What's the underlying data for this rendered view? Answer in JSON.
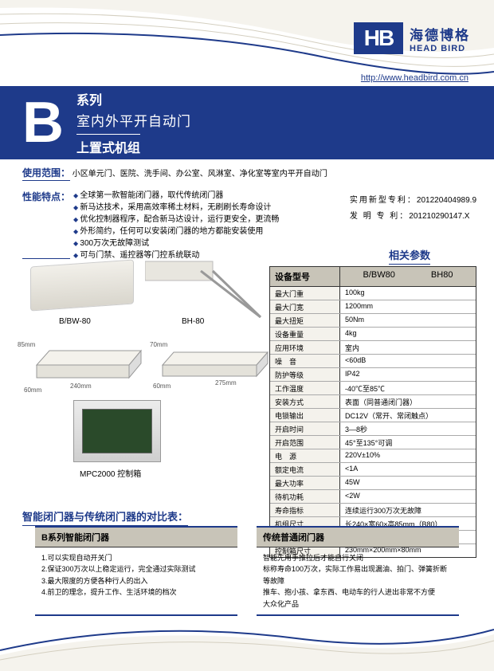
{
  "brand": {
    "cn": "海德博格",
    "en": "HEAD BIRD",
    "mark": "HB",
    "url": "http://www.headbird.com.cn"
  },
  "title": {
    "letter": "B",
    "line1": "系列",
    "line2": "室内外平开自动门",
    "line3": "上置式机组"
  },
  "scope_label": "使用范围：",
  "scope_text": "小区单元门、医院、洗手间、办公室、风淋室、净化室等室内平开自动门",
  "feat_label": "性能特点：",
  "features": [
    "全球第一款智能闭门器，取代传统闭门器",
    "新马达技术，采用高效率稀土材料，无刷刷长寿命设计",
    "优化控制器程序，配合新马达设计，运行更安全，更流畅",
    "外形简约，任何可以安装闭门器的地方都能安装使用",
    "300万次无故障测试",
    "可与门禁、遥控器等门控系统联动"
  ],
  "patents": [
    {
      "label": "实用新型专利：",
      "num": "201220404989.9"
    },
    {
      "label": "发 明 专 利：",
      "num": "201210290147.X"
    }
  ],
  "products": {
    "p1": "B/BW-80",
    "p2": "BH-80",
    "p3": "MPC2000 控制箱"
  },
  "dims": {
    "d85": "85mm",
    "d240": "240mm",
    "d60a": "60mm",
    "d70": "70mm",
    "d275": "275mm",
    "d60b": "60mm"
  },
  "params_title": "相关参数",
  "params_header": {
    "label": "设备型号",
    "m1": "B/BW80",
    "m2": "BH80"
  },
  "params": [
    {
      "k": "最大门重",
      "v": "100kg"
    },
    {
      "k": "最大门宽",
      "v": "1200mm"
    },
    {
      "k": "最大扭矩",
      "v": "50Nm"
    },
    {
      "k": "设备重量",
      "v": "4kg"
    },
    {
      "k": "应用环境",
      "v": "室内"
    },
    {
      "k": "噪　音",
      "v": "<60dB"
    },
    {
      "k": "防护等级",
      "v": "IP42"
    },
    {
      "k": "工作温度",
      "v": "-40℃至85℃"
    },
    {
      "k": "安装方式",
      "v": "表面（同普通闭门器）"
    },
    {
      "k": "电锁输出",
      "v": "DC12V（常开、常闭触点）"
    },
    {
      "k": "开启时间",
      "v": "3—8秒"
    },
    {
      "k": "开启范围",
      "v": "45°至135°可调"
    },
    {
      "k": "电　源",
      "v": "220V±10%"
    },
    {
      "k": "额定电流",
      "v": "<1A"
    },
    {
      "k": "最大功率",
      "v": "45W"
    },
    {
      "k": "待机功耗",
      "v": "<2W"
    },
    {
      "k": "寿命指标",
      "v": "连续运行300万次无故障"
    },
    {
      "k": "机组尺寸",
      "v": "长240×宽60×高85mm（B80）"
    },
    {
      "k": "",
      "v": "长275×宽60×高70mm（BH80）"
    },
    {
      "k": "控制箱尺寸",
      "v": "230mm×200mm×80mm"
    }
  ],
  "compare_title": "智能闭门器与传统闭门器的对比表：",
  "compare_left_h": "B系列智能闭门器",
  "compare_left": "1.可以实现自动开关门\n2.保证300万次以上稳定运行，完全通过实际测试\n3.最大限度的方便各种行人的出入\n4.前卫的理念，提升工作、生活环境的档次",
  "compare_right_h": "传统普通闭门器",
  "compare_right": "智能先用手推拉后才能自行关闭\n标称寿命100万次，实际工作易出现漏油、拍门、弹簧折断等故障\n推车、抱小孩、拿东西、电动车的行人进出非常不方便\n大众化产品",
  "colors": {
    "brand": "#1e3a8a",
    "band": "#c8c4b8",
    "bg": "#ffffff"
  }
}
